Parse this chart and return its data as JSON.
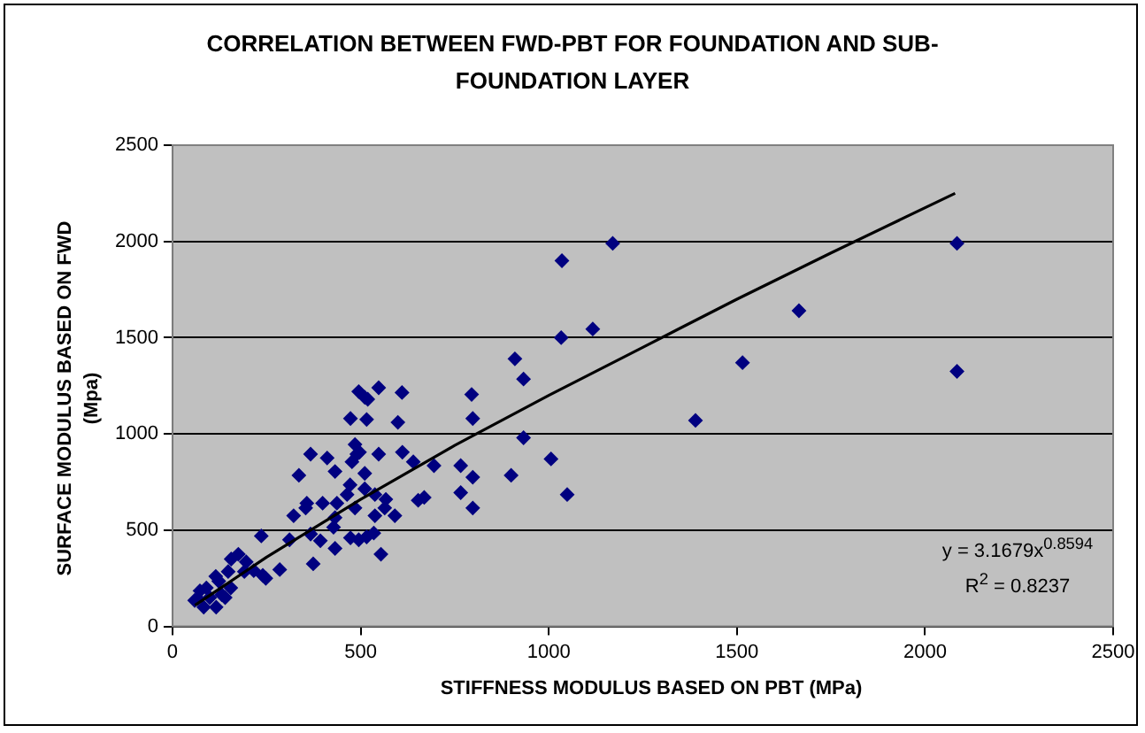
{
  "chart_data": {
    "type": "scatter",
    "title": "CORRELATION BETWEEN FWD-PBT FOR FOUNDATION AND SUB-FOUNDATION LAYER",
    "xlabel": "STIFFNESS MODULUS BASED ON PBT (MPa)",
    "ylabel": "SURFACE MODULUS BASED ON FWD (Mpa)",
    "xlim": [
      0,
      2500
    ],
    "xticks": [
      0,
      500,
      1000,
      1500,
      2000,
      2500
    ],
    "ylim": [
      0,
      2500
    ],
    "yticks": [
      0,
      500,
      1000,
      1500,
      2000,
      2500
    ],
    "grid": "y",
    "legend": false,
    "annotations": [
      "y = 3.1679x$^{0.8594}$",
      "R$^{2}$ = 0.8237"
    ],
    "series": [
      {
        "marker": "diamond",
        "color": "#000080",
        "x": [
          910,
          495,
          511,
          519,
          548,
          610,
          473,
          516,
          599,
          795,
          798,
          485,
          490,
          367,
          411,
          548,
          611,
          432,
          477,
          497,
          336,
          640,
          695,
          766,
          798,
          900,
          511,
          472,
          511,
          538,
          464,
          437,
          485,
          567,
          564,
          538,
          591,
          653,
          669,
          766,
          798,
          357,
          354,
          399,
          322,
          432,
          428,
          393,
          367,
          432,
          473,
          495,
          516,
          535,
          554,
          374,
          236,
          311,
          285,
          240,
          248,
          175,
          156,
          196,
          216,
          191,
          115,
          148,
          123,
          155,
          90,
          73,
          59,
          83,
          116,
          99,
          140,
          67,
          131,
          1170,
          1035,
          1033,
          1117,
          933,
          933,
          1006,
          1049,
          1390,
          1515,
          1665,
          2085,
          2085
        ],
        "values": [
          1390,
          1220,
          1190,
          1180,
          1240,
          1215,
          1080,
          1075,
          1060,
          1205,
          1080,
          945,
          895,
          895,
          875,
          895,
          905,
          805,
          855,
          905,
          785,
          855,
          835,
          835,
          775,
          785,
          795,
          735,
          715,
          685,
          685,
          640,
          615,
          660,
          615,
          575,
          575,
          655,
          670,
          695,
          615,
          640,
          615,
          640,
          575,
          565,
          515,
          445,
          480,
          405,
          460,
          450,
          465,
          485,
          375,
          325,
          470,
          450,
          295,
          265,
          250,
          375,
          350,
          335,
          290,
          285,
          260,
          285,
          235,
          200,
          200,
          185,
          135,
          100,
          100,
          150,
          150,
          145,
          165,
          1990,
          1900,
          1500,
          1545,
          1285,
          980,
          870,
          685,
          1070,
          1370,
          1640,
          1990,
          1325
        ]
      },
      {
        "type": "line",
        "marker": "none",
        "color": "#000000",
        "line_style": "solid",
        "x": [
          60,
          250,
          500,
          750,
          1000,
          1250,
          1500,
          1750,
          2080
        ],
        "values": [
          110,
          360,
          660,
          940,
          1200,
          1450,
          1700,
          1940,
          2250
        ]
      }
    ]
  }
}
